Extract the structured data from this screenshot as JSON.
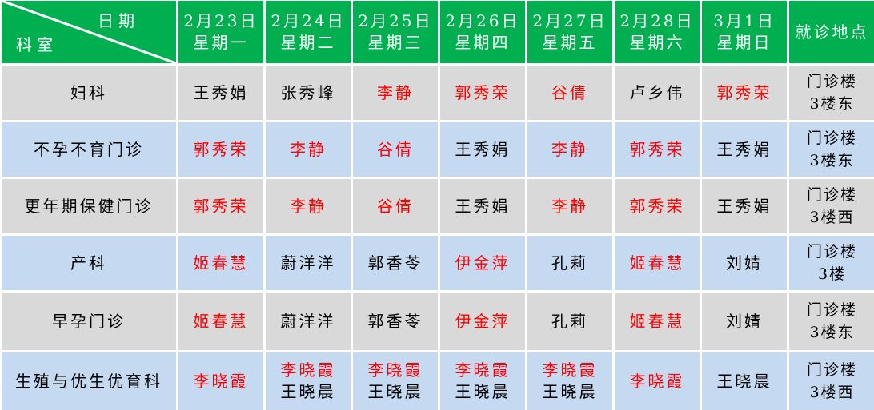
{
  "header": {
    "corner_date_label": "日期",
    "corner_dept_label": "科室",
    "days": [
      {
        "date": "2月23日",
        "weekday": "星期一"
      },
      {
        "date": "2月24日",
        "weekday": "星期二"
      },
      {
        "date": "2月25日",
        "weekday": "星期三"
      },
      {
        "date": "2月26日",
        "weekday": "星期四"
      },
      {
        "date": "2月27日",
        "weekday": "星期五"
      },
      {
        "date": "2月28日",
        "weekday": "星期六"
      },
      {
        "date": "3月1日",
        "weekday": "星期日"
      }
    ],
    "location_label": "就诊地点"
  },
  "colors": {
    "header_bg": "#00b050",
    "row_gray": "#d9d9d9",
    "row_blue": "#c5d9f1",
    "highlight_red": "#ff0000"
  },
  "rows": [
    {
      "dept": "妇科",
      "shade": "gray",
      "cells": [
        [
          {
            "name": "王秀娟",
            "red": false
          }
        ],
        [
          {
            "name": "张秀峰",
            "red": false
          }
        ],
        [
          {
            "name": "李静",
            "red": true
          }
        ],
        [
          {
            "name": "郭秀荣",
            "red": true
          }
        ],
        [
          {
            "name": "谷倩",
            "red": true
          }
        ],
        [
          {
            "name": "卢乡伟",
            "red": false
          }
        ],
        [
          {
            "name": "郭秀荣",
            "red": true
          }
        ]
      ],
      "location": [
        "门诊楼",
        "3楼东"
      ]
    },
    {
      "dept": "不孕不育门诊",
      "shade": "blue",
      "cells": [
        [
          {
            "name": "郭秀荣",
            "red": true
          }
        ],
        [
          {
            "name": "李静",
            "red": true
          }
        ],
        [
          {
            "name": "谷倩",
            "red": true
          }
        ],
        [
          {
            "name": "王秀娟",
            "red": false
          }
        ],
        [
          {
            "name": "李静",
            "red": true
          }
        ],
        [
          {
            "name": "郭秀荣",
            "red": true
          }
        ],
        [
          {
            "name": "王秀娟",
            "red": false
          }
        ]
      ],
      "location": [
        "门诊楼",
        "3楼东"
      ]
    },
    {
      "dept": "更年期保健门诊",
      "shade": "gray",
      "cells": [
        [
          {
            "name": "郭秀荣",
            "red": true
          }
        ],
        [
          {
            "name": "李静",
            "red": true
          }
        ],
        [
          {
            "name": "谷倩",
            "red": true
          }
        ],
        [
          {
            "name": "王秀娟",
            "red": false
          }
        ],
        [
          {
            "name": "李静",
            "red": true
          }
        ],
        [
          {
            "name": "郭秀荣",
            "red": true
          }
        ],
        [
          {
            "name": "王秀娟",
            "red": false
          }
        ]
      ],
      "location": [
        "门诊楼",
        "3楼西"
      ]
    },
    {
      "dept": "产科",
      "shade": "blue",
      "cells": [
        [
          {
            "name": "姬春慧",
            "red": true
          }
        ],
        [
          {
            "name": "蔚洋洋",
            "red": false
          }
        ],
        [
          {
            "name": "郭香苓",
            "red": false
          }
        ],
        [
          {
            "name": "伊金萍",
            "red": true
          }
        ],
        [
          {
            "name": "孔莉",
            "red": false
          }
        ],
        [
          {
            "name": "姬春慧",
            "red": true
          }
        ],
        [
          {
            "name": "刘婧",
            "red": false
          }
        ]
      ],
      "location": [
        "门诊楼",
        "3楼"
      ]
    },
    {
      "dept": "早孕门诊",
      "shade": "gray",
      "cells": [
        [
          {
            "name": "姬春慧",
            "red": true
          }
        ],
        [
          {
            "name": "蔚洋洋",
            "red": false
          }
        ],
        [
          {
            "name": "郭香苓",
            "red": false
          }
        ],
        [
          {
            "name": "伊金萍",
            "red": true
          }
        ],
        [
          {
            "name": "孔莉",
            "red": false
          }
        ],
        [
          {
            "name": "姬春慧",
            "red": true
          }
        ],
        [
          {
            "name": "刘婧",
            "red": false
          }
        ]
      ],
      "location": [
        "门诊楼",
        "3楼东"
      ]
    },
    {
      "dept": "生殖与优生优育科",
      "shade": "blue",
      "cells": [
        [
          {
            "name": "李晓霞",
            "red": true
          }
        ],
        [
          {
            "name": "李晓霞",
            "red": true
          },
          {
            "name": "王晓晨",
            "red": false
          }
        ],
        [
          {
            "name": "李晓霞",
            "red": true
          },
          {
            "name": "王晓晨",
            "red": false
          }
        ],
        [
          {
            "name": "李晓霞",
            "red": true
          },
          {
            "name": "王晓晨",
            "red": false
          }
        ],
        [
          {
            "name": "李晓霞",
            "red": true
          },
          {
            "name": "王晓晨",
            "red": false
          }
        ],
        [
          {
            "name": "李晓霞",
            "red": true
          }
        ],
        [
          {
            "name": "王晓晨",
            "red": false
          }
        ]
      ],
      "location": [
        "门诊楼",
        "3楼西"
      ]
    }
  ]
}
